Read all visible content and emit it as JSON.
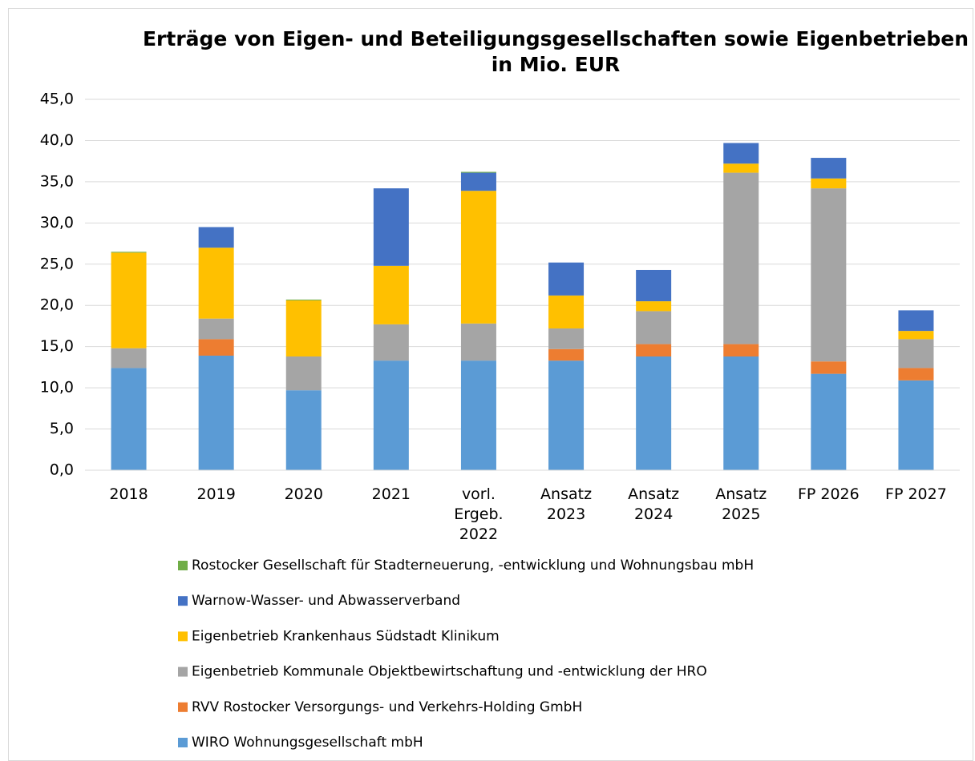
{
  "chart_data": {
    "type": "stacked_bar",
    "title": "Erträge von Eigen- und Beteiligungsgesellschaften sowie Eigenbetrieben",
    "subtitle": "in Mio. EUR",
    "categories": [
      "2018",
      "2019",
      "2020",
      "2021",
      "vorl. Ergeb. 2022",
      "Ansatz 2023",
      "Ansatz 2024",
      "Ansatz 2025",
      "FP 2026",
      "FP 2027"
    ],
    "series": [
      {
        "name": "WIRO Wohnungsgesellschaft mbH",
        "color": "#5b9bd5",
        "values": [
          12.4,
          13.9,
          9.7,
          13.3,
          13.3,
          13.3,
          13.8,
          13.8,
          11.7,
          10.9
        ]
      },
      {
        "name": "RVV Rostocker Versorgungs- und Verkehrs-Holding GmbH",
        "color": "#ed7d31",
        "values": [
          0,
          2.0,
          0,
          0,
          0,
          1.4,
          1.5,
          1.5,
          1.5,
          1.5
        ]
      },
      {
        "name": "Eigenbetrieb Kommunale Objektbewirtschaftung und -entwicklung der HRO",
        "color": "#a5a5a5",
        "values": [
          2.4,
          2.5,
          4.1,
          4.4,
          4.5,
          2.5,
          4.0,
          20.8,
          21.0,
          3.5
        ]
      },
      {
        "name": "Eigenbetrieb Krankenhaus Südstadt Klinikum",
        "color": "#ffc000",
        "values": [
          11.6,
          8.6,
          6.8,
          7.1,
          16.1,
          4.0,
          1.2,
          1.1,
          1.2,
          1.0
        ]
      },
      {
        "name": "Warnow-Wasser- und Abwasserverband",
        "color": "#4472c4",
        "values": [
          0,
          2.5,
          0,
          9.4,
          2.2,
          4.0,
          3.8,
          2.5,
          2.5,
          2.5
        ]
      },
      {
        "name": "Rostocker Gesellschaft für Stadterneuerung, -entwicklung und Wohnungsbau mbH",
        "color": "#70ad47",
        "values": [
          0.1,
          0,
          0.1,
          0,
          0.1,
          0,
          0,
          0,
          0,
          0
        ]
      }
    ],
    "ylim": [
      0,
      45
    ],
    "yticks": [
      {
        "value": 0,
        "label": "0,0"
      },
      {
        "value": 5,
        "label": "5,0"
      },
      {
        "value": 10,
        "label": "10,0"
      },
      {
        "value": 15,
        "label": "15,0"
      },
      {
        "value": 20,
        "label": "20,0"
      },
      {
        "value": 25,
        "label": "25,0"
      },
      {
        "value": 30,
        "label": "30,0"
      },
      {
        "value": 35,
        "label": "35,0"
      },
      {
        "value": 40,
        "label": "40,0"
      },
      {
        "value": 45,
        "label": "45,0"
      }
    ],
    "grid": true,
    "legend": "bottom"
  }
}
